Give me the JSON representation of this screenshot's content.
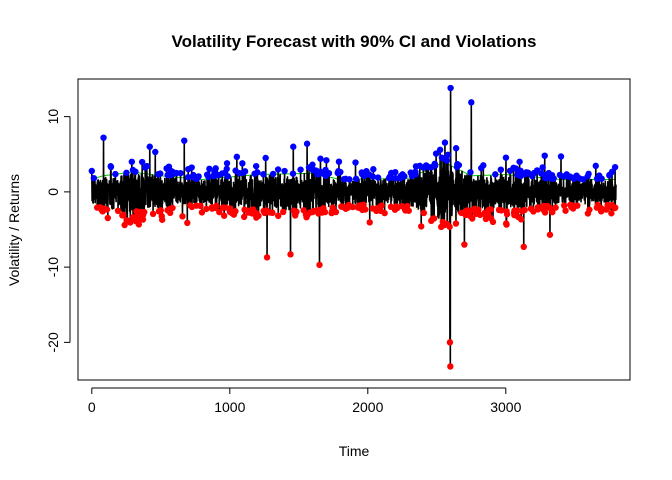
{
  "chart_data": {
    "type": "line",
    "title": "Volatility Forecast with 90% CI and Violations",
    "xlabel": "Time",
    "ylabel": "Volatility / Returns",
    "xlim": [
      0,
      3800
    ],
    "ylim": [
      -25,
      15
    ],
    "x_ticks": [
      0,
      1000,
      2000,
      3000
    ],
    "y_ticks": [
      -20,
      -10,
      0,
      10
    ],
    "grid": false,
    "legend": "none",
    "n": 3800,
    "colors": {
      "returns": "#000000",
      "upper_ci": "#00cc00",
      "lower_ci": "#ffe4b5",
      "upper_violations": "#0000ff",
      "lower_violations": "#ff0000"
    },
    "volatility_regimes": [
      {
        "x": 0,
        "sigma": 1.0
      },
      {
        "x": 80,
        "sigma": 1.3
      },
      {
        "x": 300,
        "sigma": 1.6
      },
      {
        "x": 500,
        "sigma": 1.3
      },
      {
        "x": 800,
        "sigma": 1.0
      },
      {
        "x": 1200,
        "sigma": 1.4
      },
      {
        "x": 1600,
        "sigma": 1.5
      },
      {
        "x": 1800,
        "sigma": 1.0
      },
      {
        "x": 2300,
        "sigma": 1.1
      },
      {
        "x": 2550,
        "sigma": 2.4
      },
      {
        "x": 2750,
        "sigma": 1.3
      },
      {
        "x": 3000,
        "sigma": 1.4
      },
      {
        "x": 3400,
        "sigma": 1.0
      },
      {
        "x": 3800,
        "sigma": 1.0
      }
    ],
    "notable_points": [
      {
        "x": 85,
        "y": 7.2
      },
      {
        "x": 290,
        "y": 4.0
      },
      {
        "x": 420,
        "y": 6.0
      },
      {
        "x": 460,
        "y": 5.3
      },
      {
        "x": 670,
        "y": 6.8
      },
      {
        "x": 980,
        "y": 3.8
      },
      {
        "x": 1260,
        "y": 4.5
      },
      {
        "x": 1270,
        "y": -8.7
      },
      {
        "x": 1440,
        "y": -8.3
      },
      {
        "x": 1460,
        "y": 6.0
      },
      {
        "x": 1560,
        "y": 6.4
      },
      {
        "x": 1650,
        "y": -9.7
      },
      {
        "x": 1700,
        "y": 4.2
      },
      {
        "x": 2600,
        "y": 13.8
      },
      {
        "x": 2595,
        "y": -20.0
      },
      {
        "x": 2598,
        "y": -23.2
      },
      {
        "x": 2640,
        "y": 5.8
      },
      {
        "x": 2750,
        "y": 11.9
      },
      {
        "x": 2700,
        "y": -7.0
      },
      {
        "x": 3100,
        "y": 4.0
      },
      {
        "x": 3130,
        "y": -7.3
      },
      {
        "x": 3400,
        "y": 4.7
      },
      {
        "x": 3320,
        "y": -5.7
      },
      {
        "x": 3750,
        "y": 2.2
      }
    ]
  }
}
